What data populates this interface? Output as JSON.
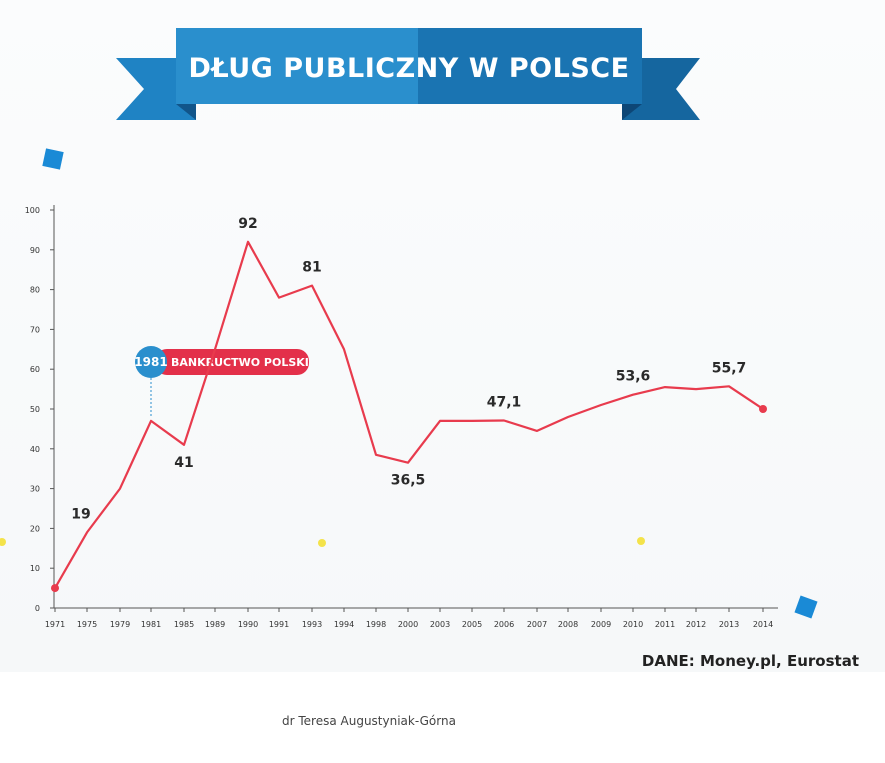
{
  "chart_data": {
    "type": "line",
    "title": "DŁUG PUBLICZNY W POLSCE",
    "x": [
      "1971",
      "1975",
      "1979",
      "1981",
      "1985",
      "1989",
      "1990",
      "1991",
      "1993",
      "1994",
      "1998",
      "2000",
      "2003",
      "2005",
      "2006",
      "2007",
      "2008",
      "2009",
      "2010",
      "2011",
      "2012",
      "2013",
      "2014"
    ],
    "series": [
      {
        "values": [
          5,
          19,
          30,
          47,
          41,
          65,
          92,
          78,
          81,
          65,
          38.5,
          36.5,
          47,
          47,
          47.1,
          44.5,
          48,
          51,
          53.6,
          55.5,
          55,
          55.7,
          50
        ],
        "color": "#e83b4d"
      }
    ],
    "data_labels": [
      {
        "index": 1,
        "text": "19"
      },
      {
        "index": 4,
        "text": "41"
      },
      {
        "index": 6,
        "text": "92"
      },
      {
        "index": 8,
        "text": "81"
      },
      {
        "index": 11,
        "text": "36,5"
      },
      {
        "index": 14,
        "text": "47,1"
      },
      {
        "index": 18,
        "text": "53,6"
      },
      {
        "index": 21,
        "text": "55,7"
      }
    ],
    "y_ticks": [
      "0",
      "10",
      "20",
      "30",
      "40",
      "50",
      "60",
      "70",
      "80",
      "90",
      "100"
    ],
    "ylim": [
      0,
      100
    ],
    "grid": false,
    "annotation": {
      "index": 3,
      "year": "1981",
      "text": "BANKRUCTWO POLSKI"
    }
  },
  "source": "DANE: Money.pl, Eurostat",
  "author": "dr Teresa Augustyniak-Górna",
  "colors": {
    "banner_left": "#2a8fcd",
    "banner_right": "#1a74b2",
    "banner_fold": "#11558a",
    "line": "#e83b4d",
    "annotation_circle": "#2a8fcd",
    "annotation_pill": "#e3304a",
    "corner_marker": "#1a8ad6",
    "star": "#f4e34a"
  }
}
